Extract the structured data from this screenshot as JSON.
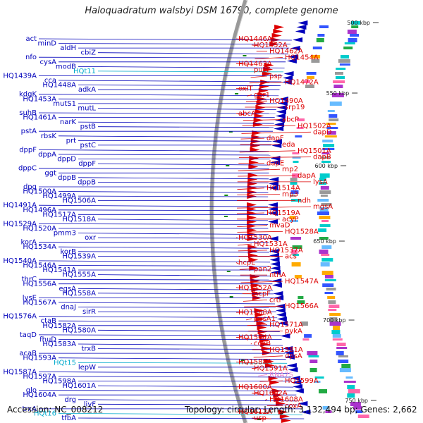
{
  "title": "Haloquadratum walsbyi DSM 16790, complete genome",
  "accession": "Accession: NC_008212",
  "summary": "Topology: circular; Length: 3,132,494 bp; Genes: 2,662",
  "colors": {
    "forward": "#dd0000",
    "reverse": "#0000bb",
    "trna": "#00aacc",
    "rrna": "#ee88cc",
    "backbone": "#999999",
    "ticks": "#118811"
  },
  "ticks": [
    {
      "label": "500 kbp"
    },
    {
      "label": "550 kbp"
    },
    {
      "label": "600 kbp"
    },
    {
      "label": "650 kbp"
    },
    {
      "label": "700 kbp"
    },
    {
      "label": "750 kbp"
    }
  ],
  "reverse_labels": [
    {
      "text": "act",
      "kind": "gene"
    },
    {
      "text": "minD",
      "kind": "gene"
    },
    {
      "text": "aldH",
      "kind": "gene"
    },
    {
      "text": "cbiZ",
      "kind": "gene"
    },
    {
      "text": "nfo",
      "kind": "gene"
    },
    {
      "text": "cysA",
      "kind": "gene"
    },
    {
      "text": "modB",
      "kind": "gene"
    },
    {
      "text": "HQt11",
      "kind": "trna"
    },
    {
      "text": "HQ1439A",
      "kind": "gene"
    },
    {
      "text": "cca",
      "kind": "gene"
    },
    {
      "text": "HQ1448A",
      "kind": "gene"
    },
    {
      "text": "adkA",
      "kind": "gene"
    },
    {
      "text": "kdgK",
      "kind": "gene"
    },
    {
      "text": "HQ1453A",
      "kind": "gene"
    },
    {
      "text": "mutS1",
      "kind": "gene"
    },
    {
      "text": "mutL",
      "kind": "gene"
    },
    {
      "text": "suhB",
      "kind": "gene"
    },
    {
      "text": "HQ1461A",
      "kind": "gene"
    },
    {
      "text": "narK",
      "kind": "gene"
    },
    {
      "text": "pstB",
      "kind": "gene"
    },
    {
      "text": "pstA",
      "kind": "gene"
    },
    {
      "text": "rbsK",
      "kind": "gene"
    },
    {
      "text": "prt",
      "kind": "gene"
    },
    {
      "text": "pstC",
      "kind": "gene"
    },
    {
      "text": "dppF",
      "kind": "gene"
    },
    {
      "text": "dppA",
      "kind": "gene"
    },
    {
      "text": "dppD",
      "kind": "gene"
    },
    {
      "text": "dppF",
      "kind": "gene"
    },
    {
      "text": "dppC",
      "kind": "gene"
    },
    {
      "text": "ggt",
      "kind": "gene"
    },
    {
      "text": "dppB",
      "kind": "gene"
    },
    {
      "text": "dppB",
      "kind": "gene"
    },
    {
      "text": "dpg",
      "kind": "gene"
    },
    {
      "text": "HQ1500A",
      "kind": "gene"
    },
    {
      "text": "HQ1499A",
      "kind": "gene"
    },
    {
      "text": "HQ1506A",
      "kind": "gene"
    },
    {
      "text": "HQ1491A",
      "kind": "gene"
    },
    {
      "text": "HQ1496A",
      "kind": "gene"
    },
    {
      "text": "HQ1517A",
      "kind": "gene"
    },
    {
      "text": "HQ1518A",
      "kind": "gene"
    },
    {
      "text": "HQ1529A",
      "kind": "gene"
    },
    {
      "text": "HQ1520A",
      "kind": "gene"
    },
    {
      "text": "pmm3",
      "kind": "gene"
    },
    {
      "text": "oxr",
      "kind": "gene"
    },
    {
      "text": "korA",
      "kind": "gene"
    },
    {
      "text": "HQ1534A",
      "kind": "gene"
    },
    {
      "text": "korB",
      "kind": "gene"
    },
    {
      "text": "HQ1539A",
      "kind": "gene"
    },
    {
      "text": "HQ1540A",
      "kind": "gene"
    },
    {
      "text": "HQ1546A",
      "kind": "gene"
    },
    {
      "text": "HQ1541A",
      "kind": "gene"
    },
    {
      "text": "HQ1555A",
      "kind": "gene"
    },
    {
      "text": "thrC",
      "kind": "gene"
    },
    {
      "text": "HQ1556A",
      "kind": "gene"
    },
    {
      "text": "egsA",
      "kind": "gene"
    },
    {
      "text": "HQ1558A",
      "kind": "gene"
    },
    {
      "text": "lysE",
      "kind": "gene"
    },
    {
      "text": "HQ1567A",
      "kind": "gene"
    },
    {
      "text": "dnaJ",
      "kind": "gene"
    },
    {
      "text": "sirR",
      "kind": "gene"
    },
    {
      "text": "HQ1576A",
      "kind": "gene"
    },
    {
      "text": "ctaB",
      "kind": "gene"
    },
    {
      "text": "HQ1582A",
      "kind": "gene"
    },
    {
      "text": "HQ1580A",
      "kind": "gene"
    },
    {
      "text": "taqD",
      "kind": "gene"
    },
    {
      "text": "fhuD",
      "kind": "gene"
    },
    {
      "text": "HQ1583A",
      "kind": "gene"
    },
    {
      "text": "trxB",
      "kind": "gene"
    },
    {
      "text": "acaB",
      "kind": "gene"
    },
    {
      "text": "HQ1593A",
      "kind": "gene"
    },
    {
      "text": "HQt15",
      "kind": "trna"
    },
    {
      "text": "lepW",
      "kind": "gene"
    },
    {
      "text": "HQ1587A",
      "kind": "gene"
    },
    {
      "text": "HQ1597A",
      "kind": "gene"
    },
    {
      "text": "HQ1598A",
      "kind": "gene"
    },
    {
      "text": "HQ1601A",
      "kind": "gene"
    },
    {
      "text": "glo",
      "kind": "gene"
    },
    {
      "text": "HQ1604A",
      "kind": "gene"
    },
    {
      "text": "drg",
      "kind": "gene"
    },
    {
      "text": "livF",
      "kind": "gene"
    },
    {
      "text": "trxA",
      "kind": "gene"
    },
    {
      "text": "HQt16",
      "kind": "trna"
    },
    {
      "text": "tfbA",
      "kind": "gene"
    }
  ],
  "forward_labels": [
    {
      "text": "HQ1446A",
      "kind": "gene"
    },
    {
      "text": "HQ1452A",
      "kind": "gene"
    },
    {
      "text": "HQ1462A",
      "kind": "gene"
    },
    {
      "text": "HQ1454A",
      "kind": "gene"
    },
    {
      "text": "HQ1463A",
      "kind": "gene"
    },
    {
      "text": "purT",
      "kind": "gene"
    },
    {
      "text": "psp",
      "kind": "gene"
    },
    {
      "text": "HQ1472A",
      "kind": "gene"
    },
    {
      "text": "oxlT",
      "kind": "gene"
    },
    {
      "text": "gar1",
      "kind": "gene"
    },
    {
      "text": "HQ1490A",
      "kind": "gene"
    },
    {
      "text": "srp19",
      "kind": "gene"
    },
    {
      "text": "abcA",
      "kind": "gene"
    },
    {
      "text": "abcP",
      "kind": "gene"
    },
    {
      "text": "HQ1502A",
      "kind": "gene"
    },
    {
      "text": "dapD",
      "kind": "gene"
    },
    {
      "text": "dapF",
      "kind": "gene"
    },
    {
      "text": "eda",
      "kind": "gene"
    },
    {
      "text": "HQ1501A",
      "kind": "gene"
    },
    {
      "text": "dapB",
      "kind": "gene"
    },
    {
      "text": "dapE",
      "kind": "gene"
    },
    {
      "text": "rnp2",
      "kind": "gene"
    },
    {
      "text": "dapA",
      "kind": "gene"
    },
    {
      "text": "lysA",
      "kind": "gene"
    },
    {
      "text": "HQ1514A",
      "kind": "gene"
    },
    {
      "text": "rnp3",
      "kind": "gene"
    },
    {
      "text": "ndh",
      "kind": "gene"
    },
    {
      "text": "mgsA",
      "kind": "gene"
    },
    {
      "text": "HQ1519A",
      "kind": "gene"
    },
    {
      "text": "acyP",
      "kind": "gene"
    },
    {
      "text": "mvaD",
      "kind": "gene"
    },
    {
      "text": "HQ1528A",
      "kind": "gene"
    },
    {
      "text": "HQ1530A",
      "kind": "gene"
    },
    {
      "text": "HQ1531A",
      "kind": "gene"
    },
    {
      "text": "HQ1537A",
      "kind": "gene"
    },
    {
      "text": "acs",
      "kind": "gene"
    },
    {
      "text": "hcpE",
      "kind": "gene"
    },
    {
      "text": "pan2",
      "kind": "gene"
    },
    {
      "text": "nthA",
      "kind": "gene"
    },
    {
      "text": "HQ1547A",
      "kind": "gene"
    },
    {
      "text": "HQ1552A",
      "kind": "gene"
    },
    {
      "text": "hcpF",
      "kind": "gene"
    },
    {
      "text": "crtI",
      "kind": "gene"
    },
    {
      "text": "HQ1566A",
      "kind": "gene"
    },
    {
      "text": "HQ1568A",
      "kind": "gene"
    },
    {
      "text": "ppsA1",
      "kind": "gene"
    },
    {
      "text": "HQ1571A",
      "kind": "gene"
    },
    {
      "text": "pykA",
      "kind": "gene"
    },
    {
      "text": "HQ1574A",
      "kind": "gene"
    },
    {
      "text": "coxB",
      "kind": "gene"
    },
    {
      "text": "HQ1581A",
      "kind": "gene"
    },
    {
      "text": "dpsA",
      "kind": "gene"
    },
    {
      "text": "HQ1588A",
      "kind": "gene"
    },
    {
      "text": "HQ1591A",
      "kind": "gene"
    },
    {
      "text": "RNA7S",
      "kind": "rrna"
    },
    {
      "text": "HQ1599A",
      "kind": "gene"
    },
    {
      "text": "HQ1600A",
      "kind": "gene"
    },
    {
      "text": "HQ1602A",
      "kind": "gene"
    },
    {
      "text": "HQ1608A",
      "kind": "gene"
    },
    {
      "text": "coxA",
      "kind": "gene"
    },
    {
      "text": "HQ1612A",
      "kind": "gene"
    },
    {
      "text": "usp",
      "kind": "gene"
    }
  ]
}
